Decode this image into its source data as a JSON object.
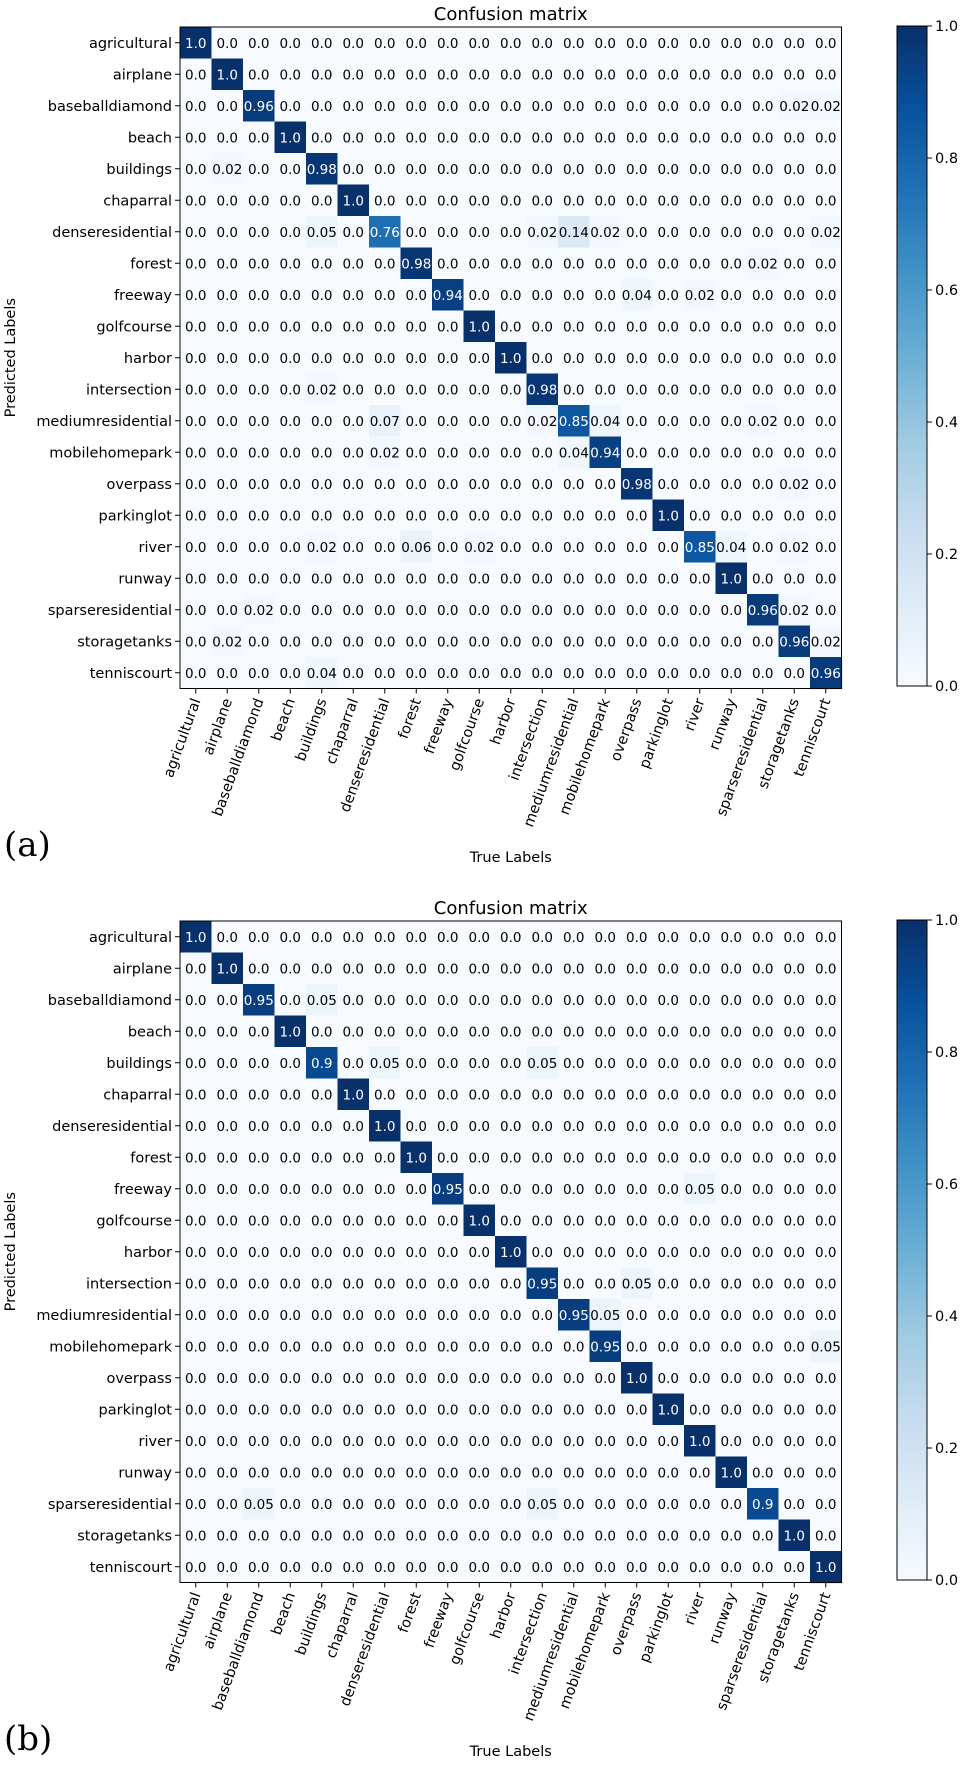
{
  "panels": [
    {
      "letter": "(a)",
      "chart_data": {
        "type": "heatmap",
        "title": "Confusion matrix",
        "xlabel": "True Labels",
        "ylabel": "Predicted Labels",
        "labels": [
          "agricultural",
          "airplane",
          "baseballdiamond",
          "beach",
          "buildings",
          "chaparral",
          "denseresidential",
          "forest",
          "freeway",
          "golfcourse",
          "harbor",
          "intersection",
          "mediumresidential",
          "mobilehomepark",
          "overpass",
          "parkinglot",
          "river",
          "runway",
          "sparseresidential",
          "storagetanks",
          "tenniscourt"
        ],
        "colorbar": {
          "range": [
            0.0,
            1.0
          ],
          "ticks": [
            "0.0",
            "0.2",
            "0.4",
            "0.6",
            "0.8",
            "1.0"
          ],
          "colormap": "Blues"
        },
        "matrix": [
          [
            "1.0",
            "0.0",
            "0.0",
            "0.0",
            "0.0",
            "0.0",
            "0.0",
            "0.0",
            "0.0",
            "0.0",
            "0.0",
            "0.0",
            "0.0",
            "0.0",
            "0.0",
            "0.0",
            "0.0",
            "0.0",
            "0.0",
            "0.0",
            "0.0"
          ],
          [
            "0.0",
            "1.0",
            "0.0",
            "0.0",
            "0.0",
            "0.0",
            "0.0",
            "0.0",
            "0.0",
            "0.0",
            "0.0",
            "0.0",
            "0.0",
            "0.0",
            "0.0",
            "0.0",
            "0.0",
            "0.0",
            "0.0",
            "0.0",
            "0.0"
          ],
          [
            "0.0",
            "0.0",
            "0.96",
            "0.0",
            "0.0",
            "0.0",
            "0.0",
            "0.0",
            "0.0",
            "0.0",
            "0.0",
            "0.0",
            "0.0",
            "0.0",
            "0.0",
            "0.0",
            "0.0",
            "0.0",
            "0.0",
            "0.02",
            "0.02"
          ],
          [
            "0.0",
            "0.0",
            "0.0",
            "1.0",
            "0.0",
            "0.0",
            "0.0",
            "0.0",
            "0.0",
            "0.0",
            "0.0",
            "0.0",
            "0.0",
            "0.0",
            "0.0",
            "0.0",
            "0.0",
            "0.0",
            "0.0",
            "0.0",
            "0.0"
          ],
          [
            "0.0",
            "0.02",
            "0.0",
            "0.0",
            "0.98",
            "0.0",
            "0.0",
            "0.0",
            "0.0",
            "0.0",
            "0.0",
            "0.0",
            "0.0",
            "0.0",
            "0.0",
            "0.0",
            "0.0",
            "0.0",
            "0.0",
            "0.0",
            "0.0"
          ],
          [
            "0.0",
            "0.0",
            "0.0",
            "0.0",
            "0.0",
            "1.0",
            "0.0",
            "0.0",
            "0.0",
            "0.0",
            "0.0",
            "0.0",
            "0.0",
            "0.0",
            "0.0",
            "0.0",
            "0.0",
            "0.0",
            "0.0",
            "0.0",
            "0.0"
          ],
          [
            "0.0",
            "0.0",
            "0.0",
            "0.0",
            "0.05",
            "0.0",
            "0.76",
            "0.0",
            "0.0",
            "0.0",
            "0.0",
            "0.02",
            "0.14",
            "0.02",
            "0.0",
            "0.0",
            "0.0",
            "0.0",
            "0.0",
            "0.0",
            "0.02"
          ],
          [
            "0.0",
            "0.0",
            "0.0",
            "0.0",
            "0.0",
            "0.0",
            "0.0",
            "0.98",
            "0.0",
            "0.0",
            "0.0",
            "0.0",
            "0.0",
            "0.0",
            "0.0",
            "0.0",
            "0.0",
            "0.0",
            "0.02",
            "0.0",
            "0.0"
          ],
          [
            "0.0",
            "0.0",
            "0.0",
            "0.0",
            "0.0",
            "0.0",
            "0.0",
            "0.0",
            "0.94",
            "0.0",
            "0.0",
            "0.0",
            "0.0",
            "0.0",
            "0.04",
            "0.0",
            "0.02",
            "0.0",
            "0.0",
            "0.0",
            "0.0"
          ],
          [
            "0.0",
            "0.0",
            "0.0",
            "0.0",
            "0.0",
            "0.0",
            "0.0",
            "0.0",
            "0.0",
            "1.0",
            "0.0",
            "0.0",
            "0.0",
            "0.0",
            "0.0",
            "0.0",
            "0.0",
            "0.0",
            "0.0",
            "0.0",
            "0.0"
          ],
          [
            "0.0",
            "0.0",
            "0.0",
            "0.0",
            "0.0",
            "0.0",
            "0.0",
            "0.0",
            "0.0",
            "0.0",
            "1.0",
            "0.0",
            "0.0",
            "0.0",
            "0.0",
            "0.0",
            "0.0",
            "0.0",
            "0.0",
            "0.0",
            "0.0"
          ],
          [
            "0.0",
            "0.0",
            "0.0",
            "0.0",
            "0.02",
            "0.0",
            "0.0",
            "0.0",
            "0.0",
            "0.0",
            "0.0",
            "0.98",
            "0.0",
            "0.0",
            "0.0",
            "0.0",
            "0.0",
            "0.0",
            "0.0",
            "0.0",
            "0.0"
          ],
          [
            "0.0",
            "0.0",
            "0.0",
            "0.0",
            "0.0",
            "0.0",
            "0.07",
            "0.0",
            "0.0",
            "0.0",
            "0.0",
            "0.02",
            "0.85",
            "0.04",
            "0.0",
            "0.0",
            "0.0",
            "0.0",
            "0.02",
            "0.0",
            "0.0"
          ],
          [
            "0.0",
            "0.0",
            "0.0",
            "0.0",
            "0.0",
            "0.0",
            "0.02",
            "0.0",
            "0.0",
            "0.0",
            "0.0",
            "0.0",
            "0.04",
            "0.94",
            "0.0",
            "0.0",
            "0.0",
            "0.0",
            "0.0",
            "0.0",
            "0.0"
          ],
          [
            "0.0",
            "0.0",
            "0.0",
            "0.0",
            "0.0",
            "0.0",
            "0.0",
            "0.0",
            "0.0",
            "0.0",
            "0.0",
            "0.0",
            "0.0",
            "0.0",
            "0.98",
            "0.0",
            "0.0",
            "0.0",
            "0.0",
            "0.02",
            "0.0"
          ],
          [
            "0.0",
            "0.0",
            "0.0",
            "0.0",
            "0.0",
            "0.0",
            "0.0",
            "0.0",
            "0.0",
            "0.0",
            "0.0",
            "0.0",
            "0.0",
            "0.0",
            "0.0",
            "1.0",
            "0.0",
            "0.0",
            "0.0",
            "0.0",
            "0.0"
          ],
          [
            "0.0",
            "0.0",
            "0.0",
            "0.0",
            "0.02",
            "0.0",
            "0.0",
            "0.06",
            "0.0",
            "0.02",
            "0.0",
            "0.0",
            "0.0",
            "0.0",
            "0.0",
            "0.0",
            "0.85",
            "0.04",
            "0.0",
            "0.02",
            "0.0"
          ],
          [
            "0.0",
            "0.0",
            "0.0",
            "0.0",
            "0.0",
            "0.0",
            "0.0",
            "0.0",
            "0.0",
            "0.0",
            "0.0",
            "0.0",
            "0.0",
            "0.0",
            "0.0",
            "0.0",
            "0.0",
            "1.0",
            "0.0",
            "0.0",
            "0.0"
          ],
          [
            "0.0",
            "0.0",
            "0.02",
            "0.0",
            "0.0",
            "0.0",
            "0.0",
            "0.0",
            "0.0",
            "0.0",
            "0.0",
            "0.0",
            "0.0",
            "0.0",
            "0.0",
            "0.0",
            "0.0",
            "0.0",
            "0.96",
            "0.02",
            "0.0"
          ],
          [
            "0.0",
            "0.02",
            "0.0",
            "0.0",
            "0.0",
            "0.0",
            "0.0",
            "0.0",
            "0.0",
            "0.0",
            "0.0",
            "0.0",
            "0.0",
            "0.0",
            "0.0",
            "0.0",
            "0.0",
            "0.0",
            "0.0",
            "0.96",
            "0.02"
          ],
          [
            "0.0",
            "0.0",
            "0.0",
            "0.0",
            "0.04",
            "0.0",
            "0.0",
            "0.0",
            "0.0",
            "0.0",
            "0.0",
            "0.0",
            "0.0",
            "0.0",
            "0.0",
            "0.0",
            "0.0",
            "0.0",
            "0.0",
            "0.0",
            "0.96"
          ]
        ]
      }
    },
    {
      "letter": "(b)",
      "chart_data": {
        "type": "heatmap",
        "title": "Confusion matrix",
        "xlabel": "True Labels",
        "ylabel": "Predicted Labels",
        "labels": [
          "agricultural",
          "airplane",
          "baseballdiamond",
          "beach",
          "buildings",
          "chaparral",
          "denseresidential",
          "forest",
          "freeway",
          "golfcourse",
          "harbor",
          "intersection",
          "mediumresidential",
          "mobilehomepark",
          "overpass",
          "parkinglot",
          "river",
          "runway",
          "sparseresidential",
          "storagetanks",
          "tenniscourt"
        ],
        "colorbar": {
          "range": [
            0.0,
            1.0
          ],
          "ticks": [
            "0.0",
            "0.2",
            "0.4",
            "0.6",
            "0.8",
            "1.0"
          ],
          "colormap": "Blues"
        },
        "matrix": [
          [
            "1.0",
            "0.0",
            "0.0",
            "0.0",
            "0.0",
            "0.0",
            "0.0",
            "0.0",
            "0.0",
            "0.0",
            "0.0",
            "0.0",
            "0.0",
            "0.0",
            "0.0",
            "0.0",
            "0.0",
            "0.0",
            "0.0",
            "0.0",
            "0.0"
          ],
          [
            "0.0",
            "1.0",
            "0.0",
            "0.0",
            "0.0",
            "0.0",
            "0.0",
            "0.0",
            "0.0",
            "0.0",
            "0.0",
            "0.0",
            "0.0",
            "0.0",
            "0.0",
            "0.0",
            "0.0",
            "0.0",
            "0.0",
            "0.0",
            "0.0"
          ],
          [
            "0.0",
            "0.0",
            "0.95",
            "0.0",
            "0.05",
            "0.0",
            "0.0",
            "0.0",
            "0.0",
            "0.0",
            "0.0",
            "0.0",
            "0.0",
            "0.0",
            "0.0",
            "0.0",
            "0.0",
            "0.0",
            "0.0",
            "0.0",
            "0.0"
          ],
          [
            "0.0",
            "0.0",
            "0.0",
            "1.0",
            "0.0",
            "0.0",
            "0.0",
            "0.0",
            "0.0",
            "0.0",
            "0.0",
            "0.0",
            "0.0",
            "0.0",
            "0.0",
            "0.0",
            "0.0",
            "0.0",
            "0.0",
            "0.0",
            "0.0"
          ],
          [
            "0.0",
            "0.0",
            "0.0",
            "0.0",
            "0.9",
            "0.0",
            "0.05",
            "0.0",
            "0.0",
            "0.0",
            "0.0",
            "0.05",
            "0.0",
            "0.0",
            "0.0",
            "0.0",
            "0.0",
            "0.0",
            "0.0",
            "0.0",
            "0.0"
          ],
          [
            "0.0",
            "0.0",
            "0.0",
            "0.0",
            "0.0",
            "1.0",
            "0.0",
            "0.0",
            "0.0",
            "0.0",
            "0.0",
            "0.0",
            "0.0",
            "0.0",
            "0.0",
            "0.0",
            "0.0",
            "0.0",
            "0.0",
            "0.0",
            "0.0"
          ],
          [
            "0.0",
            "0.0",
            "0.0",
            "0.0",
            "0.0",
            "0.0",
            "1.0",
            "0.0",
            "0.0",
            "0.0",
            "0.0",
            "0.0",
            "0.0",
            "0.0",
            "0.0",
            "0.0",
            "0.0",
            "0.0",
            "0.0",
            "0.0",
            "0.0"
          ],
          [
            "0.0",
            "0.0",
            "0.0",
            "0.0",
            "0.0",
            "0.0",
            "0.0",
            "1.0",
            "0.0",
            "0.0",
            "0.0",
            "0.0",
            "0.0",
            "0.0",
            "0.0",
            "0.0",
            "0.0",
            "0.0",
            "0.0",
            "0.0",
            "0.0"
          ],
          [
            "0.0",
            "0.0",
            "0.0",
            "0.0",
            "0.0",
            "0.0",
            "0.0",
            "0.0",
            "0.95",
            "0.0",
            "0.0",
            "0.0",
            "0.0",
            "0.0",
            "0.0",
            "0.0",
            "0.05",
            "0.0",
            "0.0",
            "0.0",
            "0.0"
          ],
          [
            "0.0",
            "0.0",
            "0.0",
            "0.0",
            "0.0",
            "0.0",
            "0.0",
            "0.0",
            "0.0",
            "1.0",
            "0.0",
            "0.0",
            "0.0",
            "0.0",
            "0.0",
            "0.0",
            "0.0",
            "0.0",
            "0.0",
            "0.0",
            "0.0"
          ],
          [
            "0.0",
            "0.0",
            "0.0",
            "0.0",
            "0.0",
            "0.0",
            "0.0",
            "0.0",
            "0.0",
            "0.0",
            "1.0",
            "0.0",
            "0.0",
            "0.0",
            "0.0",
            "0.0",
            "0.0",
            "0.0",
            "0.0",
            "0.0",
            "0.0"
          ],
          [
            "0.0",
            "0.0",
            "0.0",
            "0.0",
            "0.0",
            "0.0",
            "0.0",
            "0.0",
            "0.0",
            "0.0",
            "0.0",
            "0.95",
            "0.0",
            "0.0",
            "0.05",
            "0.0",
            "0.0",
            "0.0",
            "0.0",
            "0.0",
            "0.0"
          ],
          [
            "0.0",
            "0.0",
            "0.0",
            "0.0",
            "0.0",
            "0.0",
            "0.0",
            "0.0",
            "0.0",
            "0.0",
            "0.0",
            "0.0",
            "0.95",
            "0.05",
            "0.0",
            "0.0",
            "0.0",
            "0.0",
            "0.0",
            "0.0",
            "0.0"
          ],
          [
            "0.0",
            "0.0",
            "0.0",
            "0.0",
            "0.0",
            "0.0",
            "0.0",
            "0.0",
            "0.0",
            "0.0",
            "0.0",
            "0.0",
            "0.0",
            "0.95",
            "0.0",
            "0.0",
            "0.0",
            "0.0",
            "0.0",
            "0.0",
            "0.05"
          ],
          [
            "0.0",
            "0.0",
            "0.0",
            "0.0",
            "0.0",
            "0.0",
            "0.0",
            "0.0",
            "0.0",
            "0.0",
            "0.0",
            "0.0",
            "0.0",
            "0.0",
            "1.0",
            "0.0",
            "0.0",
            "0.0",
            "0.0",
            "0.0",
            "0.0"
          ],
          [
            "0.0",
            "0.0",
            "0.0",
            "0.0",
            "0.0",
            "0.0",
            "0.0",
            "0.0",
            "0.0",
            "0.0",
            "0.0",
            "0.0",
            "0.0",
            "0.0",
            "0.0",
            "1.0",
            "0.0",
            "0.0",
            "0.0",
            "0.0",
            "0.0"
          ],
          [
            "0.0",
            "0.0",
            "0.0",
            "0.0",
            "0.0",
            "0.0",
            "0.0",
            "0.0",
            "0.0",
            "0.0",
            "0.0",
            "0.0",
            "0.0",
            "0.0",
            "0.0",
            "0.0",
            "1.0",
            "0.0",
            "0.0",
            "0.0",
            "0.0"
          ],
          [
            "0.0",
            "0.0",
            "0.0",
            "0.0",
            "0.0",
            "0.0",
            "0.0",
            "0.0",
            "0.0",
            "0.0",
            "0.0",
            "0.0",
            "0.0",
            "0.0",
            "0.0",
            "0.0",
            "0.0",
            "1.0",
            "0.0",
            "0.0",
            "0.0"
          ],
          [
            "0.0",
            "0.0",
            "0.05",
            "0.0",
            "0.0",
            "0.0",
            "0.0",
            "0.0",
            "0.0",
            "0.0",
            "0.0",
            "0.05",
            "0.0",
            "0.0",
            "0.0",
            "0.0",
            "0.0",
            "0.0",
            "0.9",
            "0.0",
            "0.0"
          ],
          [
            "0.0",
            "0.0",
            "0.0",
            "0.0",
            "0.0",
            "0.0",
            "0.0",
            "0.0",
            "0.0",
            "0.0",
            "0.0",
            "0.0",
            "0.0",
            "0.0",
            "0.0",
            "0.0",
            "0.0",
            "0.0",
            "0.0",
            "1.0",
            "0.0"
          ],
          [
            "0.0",
            "0.0",
            "0.0",
            "0.0",
            "0.0",
            "0.0",
            "0.0",
            "0.0",
            "0.0",
            "0.0",
            "0.0",
            "0.0",
            "0.0",
            "0.0",
            "0.0",
            "0.0",
            "0.0",
            "0.0",
            "0.0",
            "0.0",
            "1.0"
          ]
        ]
      }
    }
  ]
}
